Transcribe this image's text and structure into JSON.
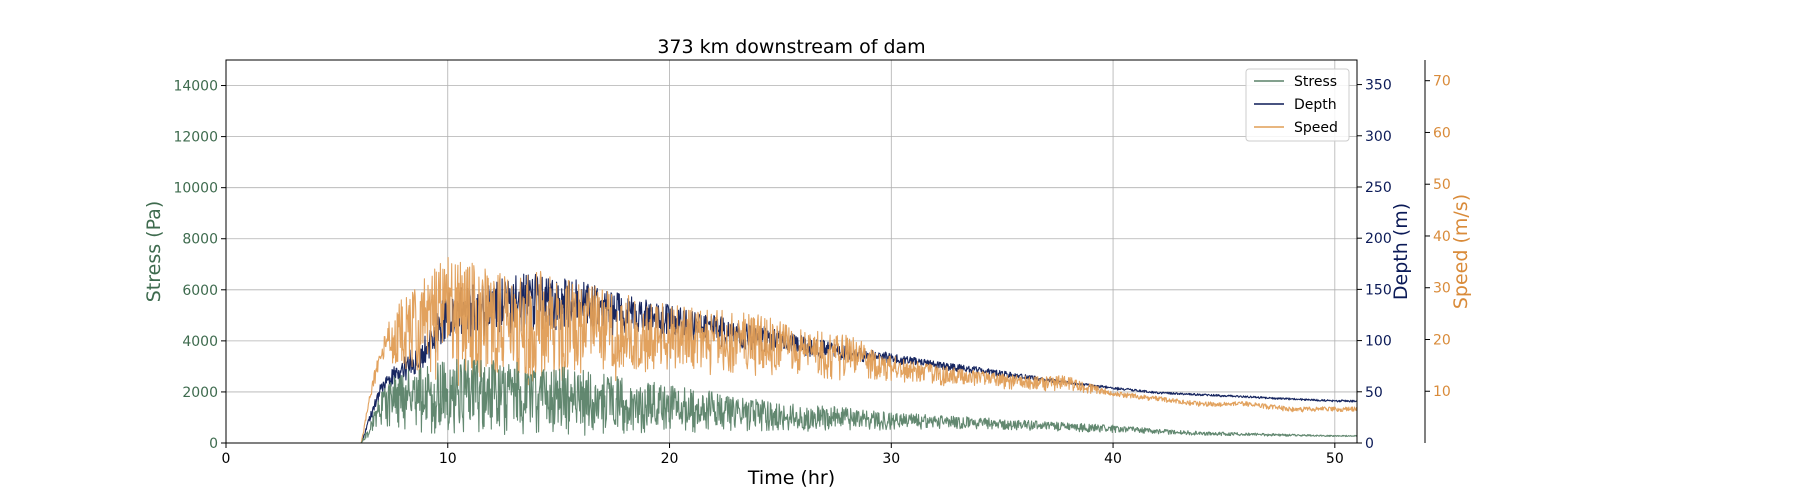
{
  "chart_data": {
    "type": "line",
    "title": "373 km downstream of dam",
    "xlabel": "Time (hr)",
    "xlim": [
      0,
      51
    ],
    "xticks": [
      0,
      10,
      20,
      30,
      40,
      50
    ],
    "grid": true,
    "legend_position": "top-right",
    "axes": [
      {
        "id": "stress",
        "label": "Stress (Pa)",
        "side": "left",
        "ylim": [
          0,
          15000
        ],
        "ticks": [
          0,
          2000,
          4000,
          6000,
          8000,
          10000,
          12000,
          14000
        ],
        "color": "#3e6b4e"
      },
      {
        "id": "depth",
        "label": "Depth (m)",
        "side": "right",
        "ylim": [
          0,
          374
        ],
        "ticks": [
          0,
          50,
          100,
          150,
          200,
          250,
          300,
          350
        ],
        "color": "#0b1a57"
      },
      {
        "id": "speed",
        "label": "Speed (m/s)",
        "side": "right-outer",
        "ylim": [
          0,
          74
        ],
        "ticks": [
          10,
          20,
          30,
          40,
          50,
          60,
          70
        ],
        "color": "#d98b3a"
      }
    ],
    "series": [
      {
        "name": "Stress",
        "axis": "stress",
        "color": "#5a8268",
        "x": [
          0,
          6.1,
          6.5,
          7,
          8,
          9,
          10,
          11,
          12,
          13,
          14,
          15,
          16,
          17,
          18,
          19,
          20,
          22,
          24,
          26,
          28,
          30,
          32,
          34,
          36,
          38,
          40,
          42,
          44,
          46,
          48,
          50,
          51
        ],
        "envelope_high": [
          0,
          0,
          800,
          2000,
          3000,
          3100,
          3300,
          3300,
          3400,
          3200,
          2900,
          3000,
          2900,
          2700,
          2600,
          2500,
          2300,
          2000,
          1700,
          1500,
          1400,
          1200,
          1100,
          1000,
          900,
          800,
          700,
          550,
          450,
          400,
          350,
          300,
          300
        ],
        "envelope_low": [
          0,
          0,
          300,
          700,
          500,
          400,
          300,
          400,
          300,
          300,
          400,
          300,
          300,
          300,
          300,
          350,
          400,
          400,
          450,
          450,
          500,
          500,
          550,
          550,
          500,
          450,
          400,
          350,
          300,
          280,
          260,
          250,
          250
        ]
      },
      {
        "name": "Depth",
        "axis": "depth",
        "color": "#0b1a57",
        "x": [
          0,
          6.1,
          6.5,
          7,
          8,
          9,
          10,
          11,
          12,
          13,
          14,
          15,
          16,
          17,
          18,
          19,
          20,
          22,
          24,
          26,
          28,
          30,
          32,
          34,
          36,
          38,
          40,
          42,
          44,
          46,
          48,
          50,
          51
        ],
        "envelope_high": [
          0,
          0,
          30,
          60,
          85,
          105,
          150,
          155,
          160,
          165,
          165,
          163,
          160,
          150,
          145,
          140,
          135,
          125,
          115,
          105,
          95,
          88,
          80,
          74,
          67,
          60,
          55,
          50,
          48,
          46,
          44,
          42,
          42
        ],
        "envelope_low": [
          0,
          0,
          20,
          45,
          60,
          70,
          100,
          100,
          105,
          105,
          110,
          110,
          110,
          105,
          105,
          105,
          100,
          95,
          90,
          85,
          80,
          78,
          72,
          67,
          62,
          57,
          52,
          48,
          46,
          44,
          42,
          40,
          40
        ]
      },
      {
        "name": "Speed",
        "axis": "speed",
        "color": "#e09d55",
        "x": [
          0,
          6.1,
          6.5,
          7,
          8,
          9,
          10,
          11,
          12,
          13,
          14,
          15,
          16,
          17,
          18,
          19,
          20,
          22,
          24,
          26,
          28,
          30,
          32,
          34,
          36,
          38,
          40,
          42,
          44,
          46,
          48,
          50,
          51
        ],
        "envelope_high": [
          0,
          0,
          10,
          20,
          30,
          32,
          36,
          35,
          33,
          33,
          34,
          32,
          31,
          30,
          29,
          28,
          27,
          26,
          25,
          22,
          21,
          17,
          15,
          14,
          13,
          13,
          10,
          9,
          8,
          8,
          7,
          7,
          7
        ],
        "envelope_low": [
          0,
          0,
          8,
          15,
          14,
          12,
          12,
          10,
          10,
          11,
          11,
          12,
          12,
          12,
          12,
          13,
          13,
          13,
          13,
          13,
          12,
          12,
          11,
          11,
          10,
          10,
          9,
          8,
          7,
          7,
          6,
          6,
          6
        ]
      }
    ]
  }
}
